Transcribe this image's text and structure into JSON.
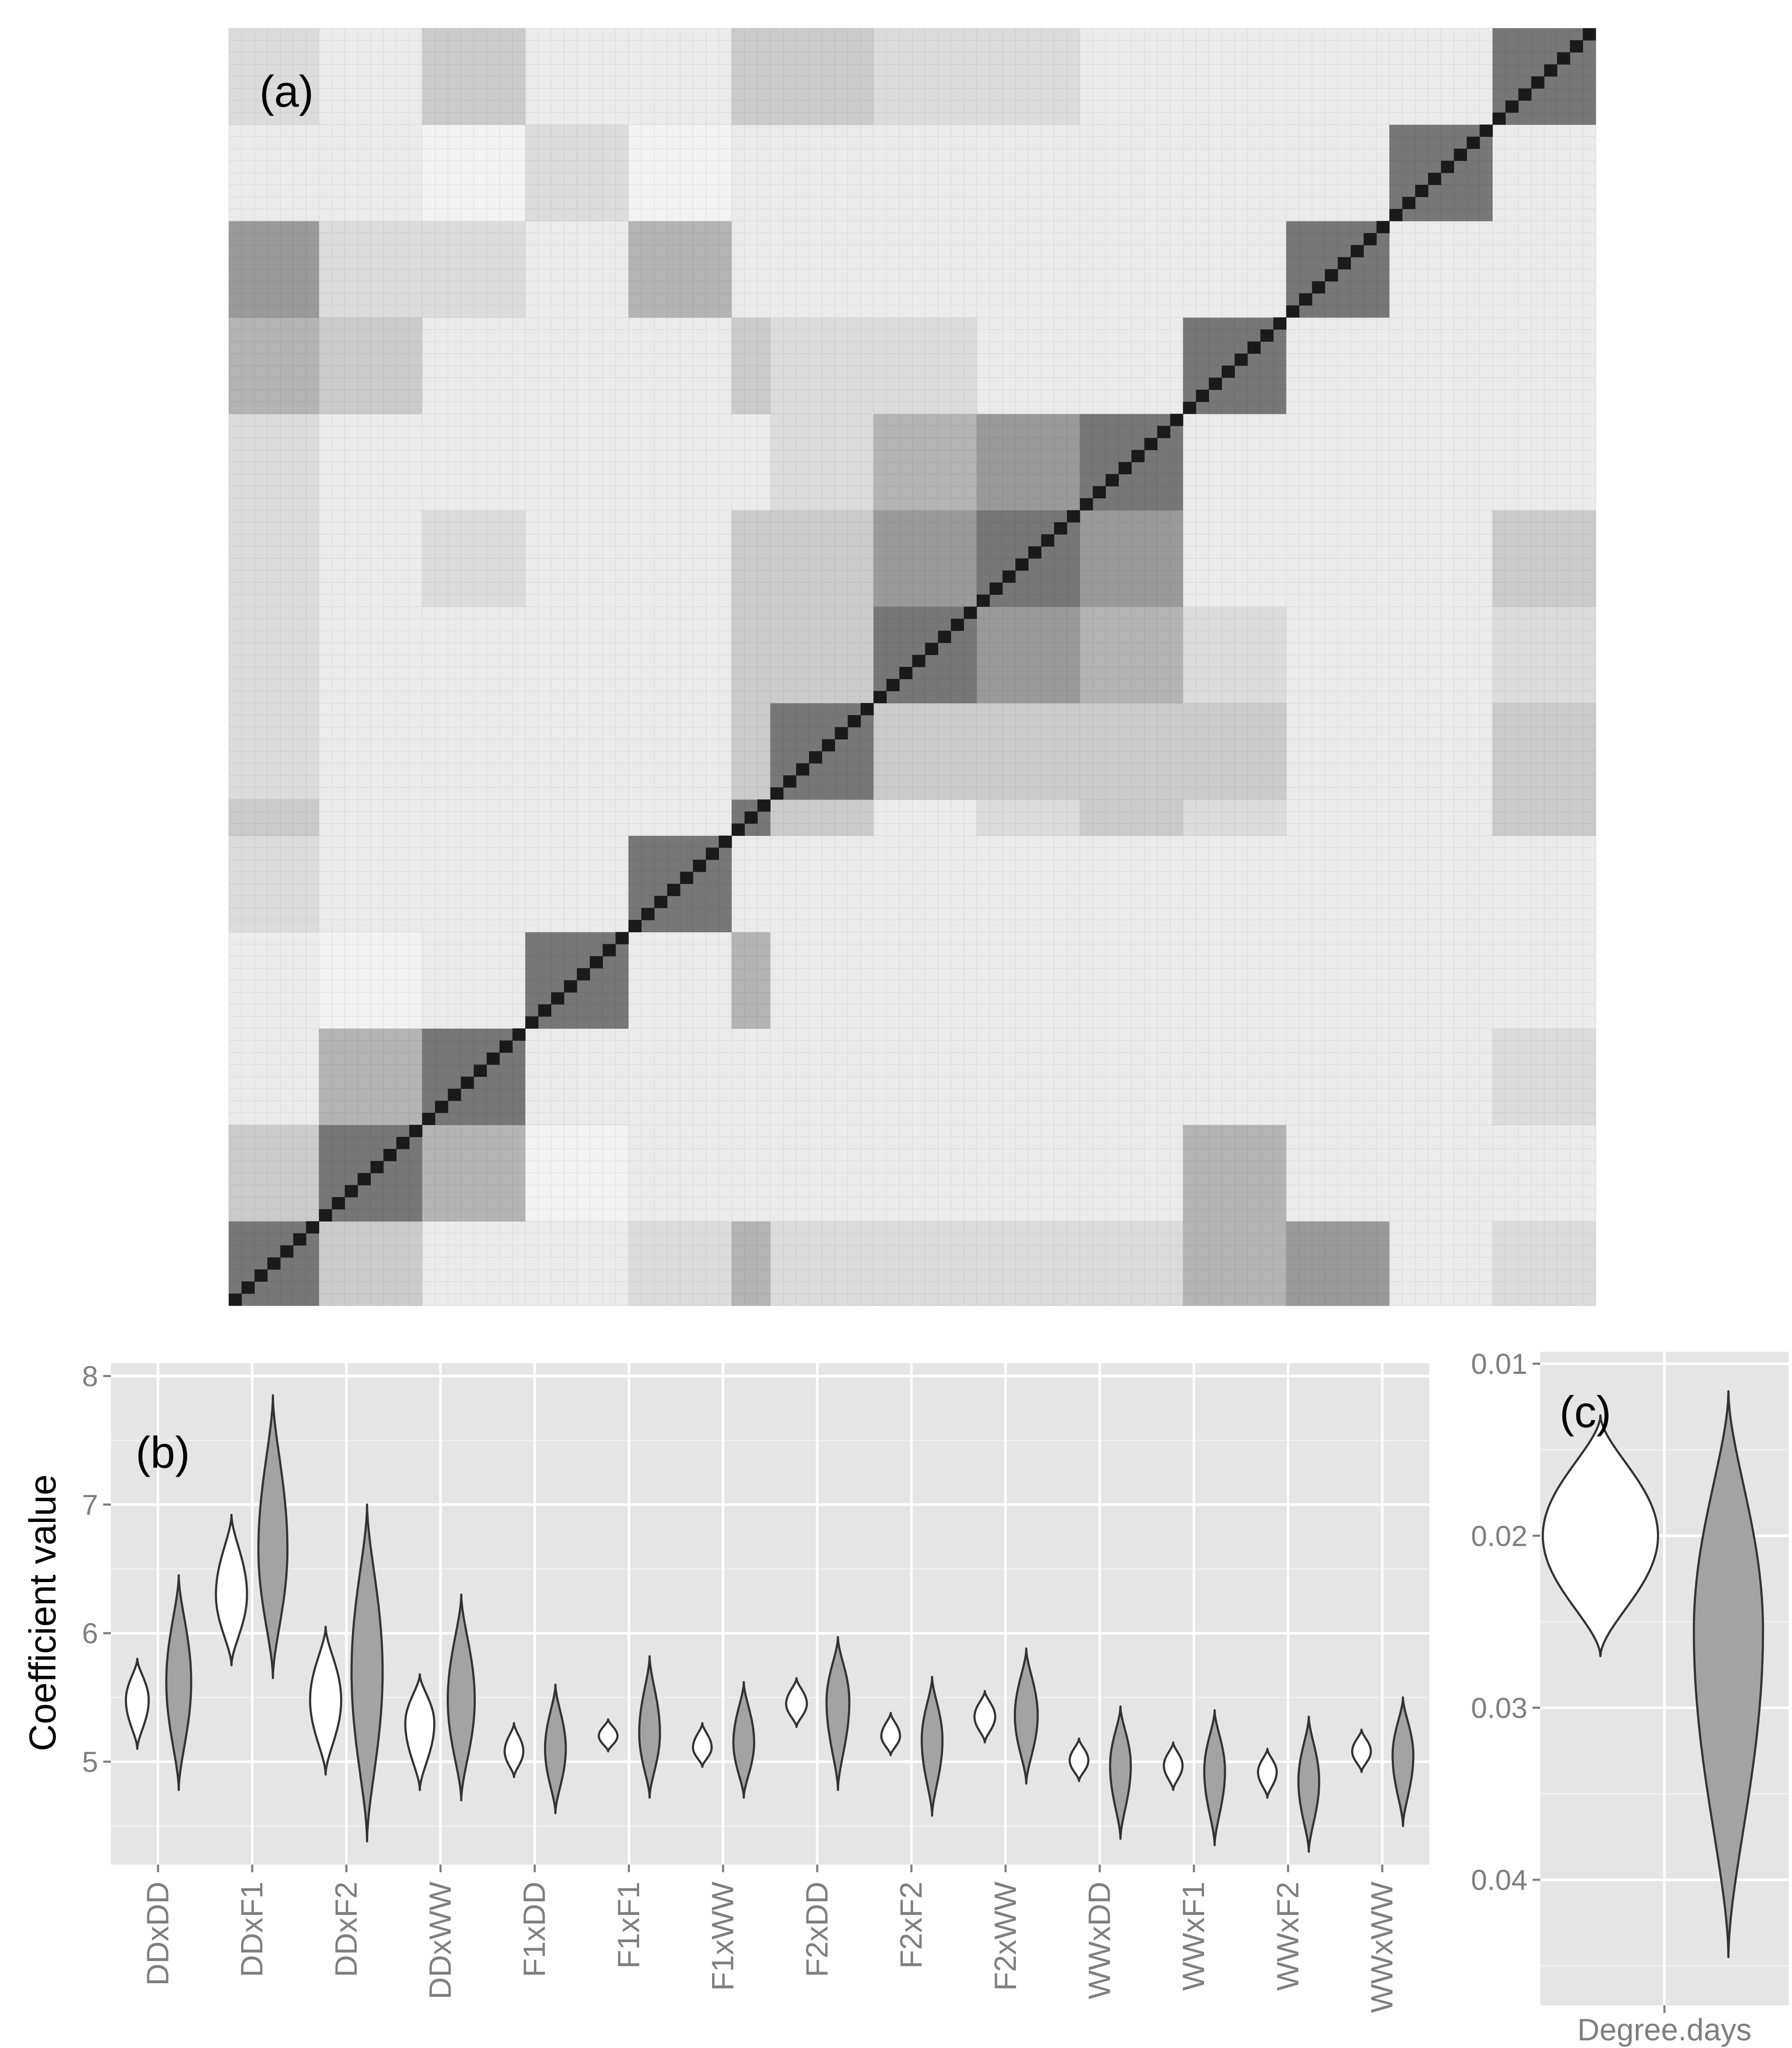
{
  "chart_data": [
    {
      "panel": "a",
      "type": "heatmap",
      "panel_label": "(a)",
      "block_sizes": [
        7,
        8,
        8,
        8,
        8,
        3,
        8,
        8,
        8,
        8,
        8,
        8,
        8,
        8
      ],
      "legend": "none",
      "grid": true,
      "palette": [
        "#ffffff",
        "#f3f3f3",
        "#ebebeb",
        "#dcdcdc",
        "#cbcbcb",
        "#b4b4b4",
        "#9a9a9a",
        "#777777"
      ],
      "levels": [
        [
          7,
          4,
          2,
          2,
          3,
          5,
          3,
          3,
          3,
          3,
          5,
          6,
          2,
          3
        ],
        [
          4,
          7,
          5,
          1,
          2,
          2,
          2,
          2,
          2,
          2,
          5,
          2,
          2,
          2
        ],
        [
          2,
          5,
          7,
          2,
          2,
          2,
          2,
          2,
          2,
          2,
          2,
          2,
          2,
          3
        ],
        [
          2,
          1,
          2,
          7,
          2,
          5,
          2,
          2,
          2,
          2,
          2,
          2,
          2,
          2
        ],
        [
          3,
          2,
          2,
          2,
          7,
          2,
          2,
          2,
          2,
          2,
          2,
          2,
          2,
          2
        ],
        [
          4,
          2,
          2,
          2,
          2,
          7,
          4,
          2,
          3,
          4,
          3,
          2,
          2,
          4
        ],
        [
          3,
          2,
          2,
          2,
          2,
          4,
          7,
          4,
          4,
          4,
          4,
          2,
          2,
          4
        ],
        [
          3,
          2,
          2,
          2,
          2,
          4,
          4,
          7,
          6,
          5,
          3,
          2,
          2,
          3
        ],
        [
          3,
          2,
          3,
          2,
          2,
          4,
          4,
          6,
          7,
          6,
          2,
          2,
          2,
          4
        ],
        [
          3,
          2,
          2,
          2,
          2,
          2,
          3,
          5,
          6,
          7,
          2,
          2,
          2,
          2
        ],
        [
          5,
          4,
          2,
          2,
          2,
          4,
          3,
          3,
          2,
          2,
          7,
          2,
          2,
          2
        ],
        [
          6,
          3,
          3,
          2,
          5,
          2,
          2,
          2,
          2,
          2,
          2,
          7,
          2,
          2
        ],
        [
          2,
          2,
          1,
          3,
          1,
          2,
          2,
          2,
          2,
          2,
          2,
          2,
          7,
          2
        ],
        [
          3,
          2,
          4,
          2,
          2,
          4,
          4,
          3,
          3,
          2,
          2,
          2,
          2,
          7
        ]
      ]
    },
    {
      "panel": "b",
      "type": "violin",
      "panel_label": "(b)",
      "ylabel": "Coefficient value",
      "ylim": [
        4.2,
        8.1
      ],
      "yticks": [
        5,
        6,
        7,
        8
      ],
      "grid": true,
      "categories": [
        "DDxDD",
        "DDxF1",
        "DDxF2",
        "DDxWW",
        "F1xDD",
        "F1xF1",
        "F1xWW",
        "F2xDD",
        "F2xF2",
        "F2xWW",
        "WWxDD",
        "WWxF1",
        "WWxF2",
        "WWxWW"
      ],
      "series": [
        {
          "fill": "#ffffff",
          "center": [
            5.48,
            6.3,
            5.48,
            5.3,
            5.08,
            5.2,
            5.11,
            5.45,
            5.2,
            5.35,
            5.01,
            4.97,
            4.92,
            5.08
          ],
          "min": [
            5.1,
            5.75,
            4.9,
            4.78,
            4.88,
            5.08,
            4.96,
            5.27,
            5.05,
            5.15,
            4.85,
            4.78,
            4.72,
            4.92
          ],
          "max": [
            5.8,
            6.92,
            6.05,
            5.68,
            5.3,
            5.33,
            5.3,
            5.65,
            5.38,
            5.55,
            5.18,
            5.15,
            5.1,
            5.25
          ],
          "width": [
            0.55,
            0.75,
            0.75,
            0.7,
            0.45,
            0.45,
            0.45,
            0.5,
            0.45,
            0.5,
            0.45,
            0.45,
            0.45,
            0.45
          ]
        },
        {
          "fill": "#a3a3a3",
          "center": [
            5.62,
            6.65,
            5.7,
            5.48,
            5.1,
            5.22,
            5.15,
            5.47,
            5.17,
            5.36,
            4.97,
            4.93,
            4.85,
            5.05
          ],
          "min": [
            4.78,
            5.65,
            4.38,
            4.7,
            4.6,
            4.72,
            4.72,
            4.78,
            4.58,
            4.83,
            4.4,
            4.35,
            4.3,
            4.5
          ],
          "max": [
            6.45,
            7.85,
            7.0,
            6.3,
            5.6,
            5.82,
            5.62,
            5.97,
            5.66,
            5.88,
            5.43,
            5.4,
            5.35,
            5.5
          ],
          "width": [
            0.6,
            0.7,
            0.75,
            0.65,
            0.5,
            0.5,
            0.5,
            0.55,
            0.5,
            0.55,
            0.5,
            0.5,
            0.5,
            0.5
          ]
        }
      ]
    },
    {
      "panel": "c",
      "type": "violin",
      "panel_label": "(c)",
      "ylim": [
        0.0093,
        0.0473
      ],
      "reversed": true,
      "yticks": [
        0.01,
        0.02,
        0.03,
        0.04
      ],
      "ytick_labels": [
        "0.01",
        "0.02",
        "0.03",
        "0.04"
      ],
      "categories": [
        "Degree.days"
      ],
      "series": [
        {
          "fill": "#ffffff",
          "center": 0.02,
          "min": 0.013,
          "max": 0.027,
          "width": 0.75
        },
        {
          "fill": "#a3a3a3",
          "center": 0.0255,
          "min": 0.0116,
          "max": 0.0445,
          "width": 0.45
        }
      ]
    }
  ]
}
